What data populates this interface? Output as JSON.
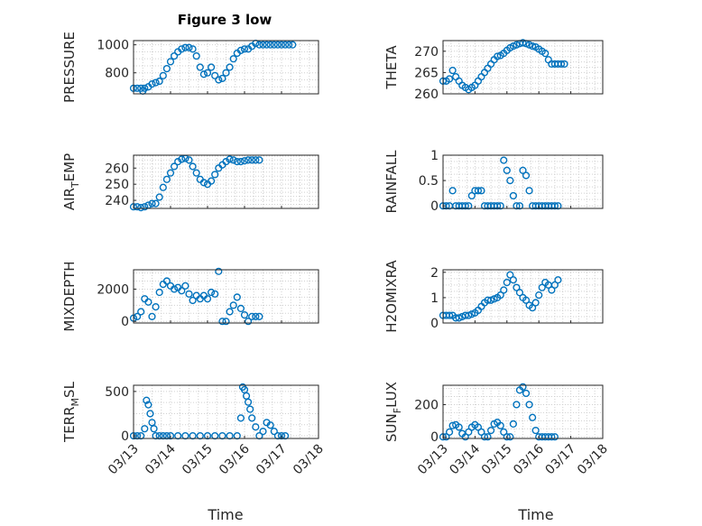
{
  "figure_title": "Figure 3 low",
  "time_label": "Time",
  "x_tick_labels": [
    "03/13",
    "03/14",
    "03/15",
    "03/16",
    "03/17",
    "03/18"
  ],
  "marker_color": "#0072bd",
  "chart_data": [
    {
      "type": "scatter",
      "title": "Figure 3 low",
      "ylabel": "PRESSURE",
      "ylabel_sub": "",
      "ylim": [
        650,
        1030
      ],
      "yticks": [
        800,
        1000
      ],
      "x": [
        0,
        0.1,
        0.2,
        0.25,
        0.3,
        0.4,
        0.5,
        0.6,
        0.7,
        0.8,
        0.9,
        1.0,
        1.1,
        1.2,
        1.3,
        1.4,
        1.5,
        1.6,
        1.7,
        1.8,
        1.9,
        2.0,
        2.1,
        2.2,
        2.3,
        2.4,
        2.5,
        2.6,
        2.7,
        2.8,
        2.9,
        3.0,
        3.1,
        3.2,
        3.3,
        3.4,
        3.5,
        3.6,
        3.7,
        3.8,
        3.9,
        4.0,
        4.1,
        4.2,
        4.3
      ],
      "y": [
        690,
        690,
        690,
        670,
        690,
        700,
        720,
        730,
        740,
        780,
        830,
        880,
        920,
        950,
        970,
        980,
        980,
        970,
        920,
        840,
        790,
        800,
        840,
        780,
        750,
        760,
        800,
        840,
        900,
        940,
        960,
        970,
        970,
        990,
        1010,
        1000,
        1000,
        1000,
        1000,
        1000,
        1000,
        1000,
        1000,
        1000,
        1000
      ]
    },
    {
      "type": "scatter",
      "ylabel": "THETA",
      "ylabel_sub": "",
      "ylim": [
        260,
        272.5
      ],
      "yticks": [
        260,
        265,
        270
      ],
      "x": [
        0,
        0.1,
        0.2,
        0.3,
        0.4,
        0.5,
        0.6,
        0.7,
        0.8,
        0.9,
        1.0,
        1.1,
        1.2,
        1.3,
        1.4,
        1.5,
        1.6,
        1.7,
        1.8,
        1.9,
        2.0,
        2.1,
        2.2,
        2.3,
        2.4,
        2.5,
        2.6,
        2.7,
        2.8,
        2.9,
        3.0,
        3.1,
        3.2,
        3.3,
        3.4,
        3.5,
        3.6,
        3.7,
        3.8
      ],
      "y": [
        263,
        263,
        263.5,
        265.5,
        264,
        263,
        262,
        261.5,
        261,
        261.5,
        262,
        263,
        264,
        265,
        266,
        267,
        268,
        268.8,
        269,
        269.5,
        270.2,
        270.8,
        271.2,
        271.5,
        271.8,
        272,
        271.8,
        271.5,
        271.2,
        271,
        270.5,
        270,
        269.5,
        268,
        267,
        267,
        267,
        267,
        267
      ]
    },
    {
      "type": "scatter",
      "ylabel": "AIR",
      "ylabel_sub": "T",
      "ylabel_suffix": "EMP",
      "ylim": [
        235,
        268
      ],
      "yticks": [
        240,
        250,
        260
      ],
      "x": [
        0,
        0.1,
        0.2,
        0.3,
        0.4,
        0.5,
        0.6,
        0.7,
        0.8,
        0.9,
        1.0,
        1.1,
        1.2,
        1.3,
        1.4,
        1.5,
        1.6,
        1.7,
        1.8,
        1.9,
        2.0,
        2.1,
        2.2,
        2.3,
        2.4,
        2.5,
        2.6,
        2.7,
        2.8,
        2.9,
        3.0,
        3.1,
        3.2,
        3.3,
        3.4
      ],
      "y": [
        236,
        236,
        235.5,
        236,
        237,
        238,
        238,
        242,
        248,
        253,
        257,
        261,
        264,
        265.5,
        266,
        265,
        261,
        257,
        253,
        251,
        250,
        252,
        256,
        260,
        262,
        264,
        265.5,
        265,
        264,
        264,
        264.5,
        265,
        265,
        265,
        265
      ]
    },
    {
      "type": "scatter",
      "ylabel": "RAINFALL",
      "ylabel_sub": "",
      "ylim": [
        -0.05,
        1.0
      ],
      "yticks": [
        0,
        0.5,
        1
      ],
      "x": [
        0,
        0.1,
        0.2,
        0.3,
        0.4,
        0.5,
        0.6,
        0.7,
        0.8,
        0.9,
        1.0,
        1.1,
        1.2,
        1.3,
        1.4,
        1.5,
        1.6,
        1.7,
        1.8,
        1.9,
        2.0,
        2.1,
        2.2,
        2.3,
        2.4,
        2.5,
        2.6,
        2.7,
        2.8,
        2.9,
        3.0,
        3.1,
        3.2,
        3.3,
        3.4,
        3.5,
        3.6
      ],
      "y": [
        0,
        0,
        0,
        0.3,
        0,
        0,
        0,
        0,
        0,
        0.2,
        0.3,
        0.3,
        0.3,
        0,
        0,
        0,
        0,
        0,
        0,
        0.9,
        0.7,
        0.5,
        0.2,
        0,
        0,
        0.7,
        0.6,
        0.3,
        0,
        0,
        0,
        0,
        0,
        0,
        0,
        0,
        0
      ]
    },
    {
      "type": "scatter",
      "ylabel": "MIXDEPTH",
      "ylabel_sub": "",
      "ylim": [
        -100,
        3200
      ],
      "yticks": [
        0,
        2000
      ],
      "x": [
        0,
        0.1,
        0.2,
        0.3,
        0.4,
        0.5,
        0.6,
        0.7,
        0.8,
        0.9,
        1.0,
        1.1,
        1.2,
        1.3,
        1.4,
        1.5,
        1.6,
        1.7,
        1.8,
        1.9,
        2.0,
        2.1,
        2.2,
        2.3,
        2.4,
        2.5,
        2.6,
        2.7,
        2.8,
        2.9,
        3.0,
        3.1,
        3.2,
        3.3,
        3.4
      ],
      "y": [
        200,
        300,
        600,
        1400,
        1200,
        300,
        900,
        1800,
        2300,
        2500,
        2200,
        2000,
        2100,
        1900,
        2200,
        1700,
        1300,
        1600,
        1400,
        1600,
        1400,
        1800,
        1700,
        3100,
        0,
        0,
        600,
        1000,
        1500,
        800,
        400,
        0,
        300,
        300,
        300
      ]
    },
    {
      "type": "scatter",
      "ylabel": "H2OMIXRA",
      "ylabel_sub": "",
      "ylim": [
        0,
        2.1
      ],
      "yticks": [
        0,
        1,
        2
      ],
      "x": [
        0,
        0.1,
        0.2,
        0.3,
        0.4,
        0.5,
        0.6,
        0.7,
        0.8,
        0.9,
        1.0,
        1.1,
        1.2,
        1.3,
        1.4,
        1.5,
        1.6,
        1.7,
        1.8,
        1.9,
        2.0,
        2.1,
        2.2,
        2.3,
        2.4,
        2.5,
        2.6,
        2.7,
        2.8,
        2.9,
        3.0,
        3.1,
        3.2,
        3.3,
        3.4,
        3.5,
        3.6
      ],
      "y": [
        0.3,
        0.3,
        0.3,
        0.3,
        0.2,
        0.2,
        0.25,
        0.3,
        0.3,
        0.35,
        0.4,
        0.5,
        0.65,
        0.8,
        0.9,
        0.9,
        0.95,
        1.0,
        1.1,
        1.3,
        1.6,
        1.9,
        1.7,
        1.4,
        1.2,
        1.0,
        0.9,
        0.7,
        0.6,
        0.8,
        1.1,
        1.4,
        1.6,
        1.5,
        1.3,
        1.5,
        1.7
      ]
    },
    {
      "type": "scatter",
      "ylabel": "TERR",
      "ylabel_sub": "M",
      "ylabel_suffix": "SL",
      "ylim": [
        -30,
        570
      ],
      "yticks": [
        0,
        500
      ],
      "x": [
        0,
        0.1,
        0.2,
        0.3,
        0.35,
        0.4,
        0.45,
        0.5,
        0.55,
        0.6,
        0.7,
        0.8,
        0.9,
        1.0,
        1.2,
        1.4,
        1.6,
        1.8,
        2.0,
        2.2,
        2.4,
        2.6,
        2.8,
        2.9,
        2.95,
        3.0,
        3.05,
        3.1,
        3.15,
        3.2,
        3.3,
        3.4,
        3.5,
        3.6,
        3.7,
        3.8,
        3.9,
        4.0,
        4.1
      ],
      "y": [
        0,
        0,
        0,
        80,
        400,
        350,
        250,
        150,
        80,
        0,
        0,
        0,
        0,
        0,
        0,
        0,
        0,
        0,
        0,
        0,
        0,
        0,
        0,
        200,
        550,
        520,
        450,
        380,
        300,
        200,
        100,
        0,
        50,
        150,
        120,
        50,
        0,
        0,
        0
      ]
    },
    {
      "type": "scatter",
      "ylabel": "SUN",
      "ylabel_sub": "F",
      "ylabel_suffix": "LUX",
      "ylim": [
        -10,
        320
      ],
      "yticks": [
        0,
        200
      ],
      "x": [
        0,
        0.1,
        0.2,
        0.3,
        0.4,
        0.5,
        0.6,
        0.7,
        0.8,
        0.9,
        1.0,
        1.1,
        1.2,
        1.3,
        1.4,
        1.5,
        1.6,
        1.7,
        1.8,
        1.9,
        2.0,
        2.1,
        2.2,
        2.3,
        2.4,
        2.5,
        2.6,
        2.7,
        2.8,
        2.9,
        3.0,
        3.1,
        3.2,
        3.3,
        3.4,
        3.5
      ],
      "y": [
        0,
        0,
        30,
        70,
        75,
        60,
        20,
        0,
        30,
        60,
        75,
        60,
        30,
        0,
        0,
        40,
        80,
        90,
        70,
        30,
        0,
        0,
        80,
        200,
        290,
        310,
        270,
        200,
        120,
        40,
        0,
        0,
        0,
        0,
        0,
        0
      ]
    }
  ]
}
